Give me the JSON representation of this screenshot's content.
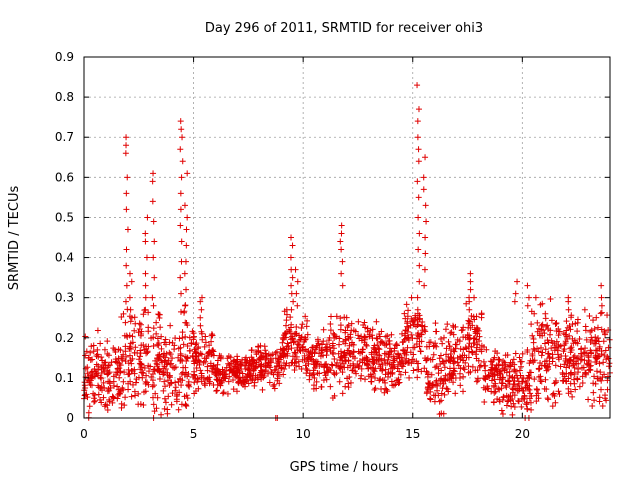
{
  "chart_data": {
    "type": "scatter",
    "title": "Day 296 of 2011, SRMTID for receiver ohi3",
    "xlabel": "GPS time / hours",
    "ylabel": "SRMTID / TECUs",
    "xlim": [
      0,
      24
    ],
    "ylim": [
      0,
      0.9
    ],
    "grid": true,
    "marker": "+",
    "color": "#e00000",
    "x_ticks": [
      0,
      5,
      10,
      15,
      20
    ],
    "x_tick_labels": [
      "0",
      "5",
      "10",
      "15",
      "20"
    ],
    "y_ticks": [
      0,
      0.1,
      0.2,
      0.3,
      0.4,
      0.5,
      0.6,
      0.7,
      0.8,
      0.9
    ],
    "y_tick_labels": [
      "0",
      "0.1",
      "0.2",
      "0.3",
      "0.4",
      "0.5",
      "0.6",
      "0.7",
      "0.8",
      "0.9"
    ],
    "series": [
      {
        "name": "SRMTID",
        "spikes": [
          {
            "x": 1.95,
            "y": [
              0.7,
              0.68,
              0.66,
              0.6,
              0.56,
              0.52,
              0.47,
              0.42,
              0.38,
              0.33,
              0.29
            ]
          },
          {
            "x": 2.15,
            "y": [
              0.36,
              0.34,
              0.3,
              0.27,
              0.25
            ]
          },
          {
            "x": 2.85,
            "y": [
              0.5,
              0.46,
              0.44,
              0.4,
              0.36,
              0.33,
              0.3,
              0.27
            ]
          },
          {
            "x": 3.15,
            "y": [
              0.61,
              0.59,
              0.54,
              0.49,
              0.44,
              0.4,
              0.35,
              0.3
            ]
          },
          {
            "x": 4.45,
            "y": [
              0.74,
              0.72,
              0.7,
              0.67,
              0.64,
              0.6,
              0.56,
              0.52,
              0.48,
              0.44,
              0.39,
              0.35,
              0.31
            ]
          },
          {
            "x": 4.65,
            "y": [
              0.61,
              0.53,
              0.5,
              0.47,
              0.43,
              0.39,
              0.36,
              0.32,
              0.28
            ]
          },
          {
            "x": 5.35,
            "y": [
              0.3,
              0.29,
              0.27,
              0.25,
              0.23
            ]
          },
          {
            "x": 9.5,
            "y": [
              0.45,
              0.43,
              0.4,
              0.37,
              0.35,
              0.33,
              0.31,
              0.29,
              0.27
            ]
          },
          {
            "x": 9.7,
            "y": [
              0.37,
              0.34,
              0.31,
              0.28
            ]
          },
          {
            "x": 11.75,
            "y": [
              0.48,
              0.46,
              0.44,
              0.42,
              0.39,
              0.36,
              0.33
            ]
          },
          {
            "x": 15.25,
            "y": [
              0.83,
              0.77,
              0.74,
              0.7,
              0.67,
              0.64,
              0.59,
              0.55,
              0.5,
              0.46,
              0.42,
              0.38,
              0.34,
              0.3,
              0.27
            ]
          },
          {
            "x": 15.55,
            "y": [
              0.65,
              0.6,
              0.57,
              0.53,
              0.49,
              0.45,
              0.41,
              0.37,
              0.33
            ]
          },
          {
            "x": 17.6,
            "y": [
              0.36,
              0.34,
              0.32,
              0.3,
              0.29,
              0.27
            ]
          },
          {
            "x": 19.7,
            "y": [
              0.34,
              0.31,
              0.29
            ]
          },
          {
            "x": 20.25,
            "y": [
              0.33,
              0.3,
              0.28
            ]
          },
          {
            "x": 22.1,
            "y": [
              0.3,
              0.29,
              0.27
            ]
          },
          {
            "x": 23.6,
            "y": [
              0.33,
              0.3,
              0.28
            ]
          }
        ],
        "bands": [
          {
            "x": [
              0.0,
              0.8
            ],
            "y": [
              0.0,
              0.22
            ]
          },
          {
            "x": [
              0.8,
              1.7
            ],
            "y": [
              0.02,
              0.2
            ]
          },
          {
            "x": [
              1.7,
              2.6
            ],
            "y": [
              0.0,
              0.3
            ]
          },
          {
            "x": [
              2.6,
              3.6
            ],
            "y": [
              0.0,
              0.28
            ]
          },
          {
            "x": [
              3.6,
              4.3
            ],
            "y": [
              0.01,
              0.24
            ]
          },
          {
            "x": [
              4.3,
              5.0
            ],
            "y": [
              0.01,
              0.3
            ]
          },
          {
            "x": [
              5.0,
              6.0
            ],
            "y": [
              0.06,
              0.22
            ]
          },
          {
            "x": [
              6.0,
              7.5
            ],
            "y": [
              0.06,
              0.16
            ]
          },
          {
            "x": [
              7.5,
              9.0
            ],
            "y": [
              0.07,
              0.18
            ]
          },
          {
            "x": [
              9.0,
              10.2
            ],
            "y": [
              0.1,
              0.27
            ]
          },
          {
            "x": [
              10.2,
              11.0
            ],
            "y": [
              0.06,
              0.22
            ]
          },
          {
            "x": [
              11.0,
              12.2
            ],
            "y": [
              0.05,
              0.26
            ]
          },
          {
            "x": [
              12.2,
              13.4
            ],
            "y": [
              0.07,
              0.24
            ]
          },
          {
            "x": [
              13.4,
              14.6
            ],
            "y": [
              0.06,
              0.22
            ]
          },
          {
            "x": [
              14.6,
              15.6
            ],
            "y": [
              0.1,
              0.3
            ]
          },
          {
            "x": [
              15.6,
              16.5
            ],
            "y": [
              0.0,
              0.24
            ]
          },
          {
            "x": [
              16.5,
              17.4
            ],
            "y": [
              0.05,
              0.24
            ]
          },
          {
            "x": [
              17.4,
              18.2
            ],
            "y": [
              0.08,
              0.3
            ]
          },
          {
            "x": [
              18.2,
              19.2
            ],
            "y": [
              0.01,
              0.18
            ]
          },
          {
            "x": [
              19.2,
              20.4
            ],
            "y": [
              0.0,
              0.17
            ]
          },
          {
            "x": [
              20.4,
              21.6
            ],
            "y": [
              0.02,
              0.3
            ]
          },
          {
            "x": [
              21.6,
              22.8
            ],
            "y": [
              0.04,
              0.26
            ]
          },
          {
            "x": [
              22.8,
              24.0
            ],
            "y": [
              0.03,
              0.27
            ]
          }
        ],
        "band_density": 55,
        "isolated_points": [
          {
            "x": 8.75,
            "y": 0.0
          },
          {
            "x": 8.82,
            "y": 0.0
          }
        ]
      }
    ]
  }
}
